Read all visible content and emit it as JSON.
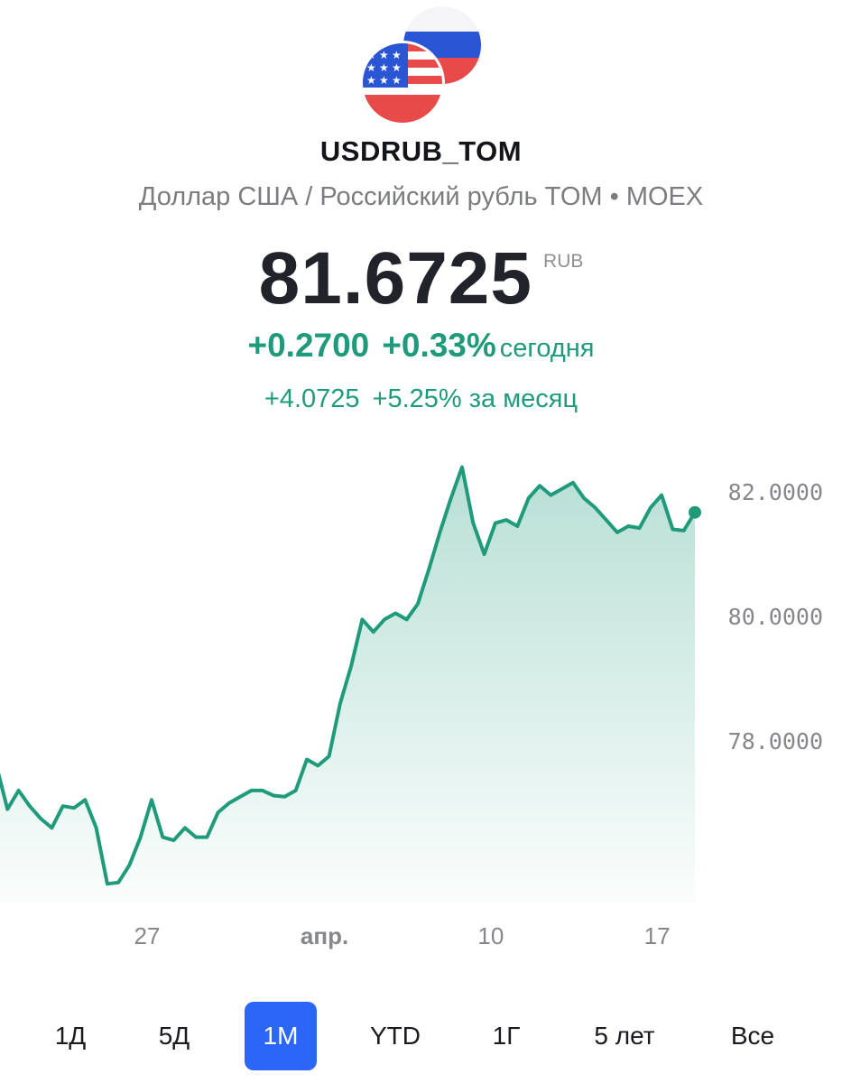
{
  "header": {
    "ticker": "USDRUB_TOM",
    "subtitle": "Доллар США / Российский рубль TOM • MOEX",
    "flags_icon": "usa-russia-flags-icon"
  },
  "quote": {
    "price": "81.6725",
    "currency": "RUB",
    "change_today_abs": "+0.2700",
    "change_today_pct": "+0.33%",
    "today_label": "сегодня",
    "change_month_abs": "+4.0725",
    "change_month_pct": "+5.25%",
    "month_label": "за месяц"
  },
  "colors": {
    "positive": "#1f9b7c",
    "accent": "#2b66f6",
    "text": "#22232a",
    "muted": "#7a7c80"
  },
  "chart_data": {
    "type": "area",
    "x": [
      0,
      1,
      2,
      3,
      4,
      5,
      6,
      7,
      8,
      9,
      10,
      11,
      12,
      13,
      14,
      15,
      16,
      17,
      18,
      19,
      20,
      21,
      22,
      23,
      24,
      25,
      26,
      27,
      28,
      29,
      30,
      31,
      32,
      33,
      34,
      35,
      36,
      37,
      38,
      39,
      40,
      41,
      42,
      43,
      44,
      45,
      46,
      47,
      48,
      49,
      50,
      51,
      52,
      53,
      54,
      55,
      56,
      57,
      58,
      59,
      60,
      61,
      62,
      63
    ],
    "values": [
      77.6,
      76.9,
      77.2,
      76.95,
      76.75,
      76.6,
      76.95,
      76.92,
      77.05,
      76.6,
      75.7,
      75.72,
      76.0,
      76.45,
      77.05,
      76.45,
      76.4,
      76.6,
      76.45,
      76.45,
      76.85,
      77.0,
      77.1,
      77.2,
      77.2,
      77.12,
      77.1,
      77.2,
      77.7,
      77.6,
      77.75,
      78.6,
      79.2,
      79.95,
      79.75,
      79.95,
      80.05,
      79.95,
      80.2,
      80.75,
      81.35,
      81.9,
      82.4,
      81.5,
      81.0,
      81.5,
      81.55,
      81.45,
      81.9,
      82.1,
      81.95,
      82.05,
      82.15,
      81.9,
      81.75,
      81.55,
      81.35,
      81.45,
      81.42,
      81.75,
      81.95,
      81.4,
      81.38,
      81.6725
    ],
    "y_ticks": [
      "82.0000",
      "80.0000",
      "78.0000"
    ],
    "y_tick_values": [
      82,
      80,
      78
    ],
    "x_tick_labels": [
      {
        "label": "27",
        "index": 14,
        "bold": false
      },
      {
        "label": "апр.",
        "index": 30,
        "bold": true
      },
      {
        "label": "10",
        "index": 45,
        "bold": false
      },
      {
        "label": "17",
        "index": 60,
        "bold": false
      }
    ],
    "ylim": [
      75.4,
      82.8
    ],
    "line_color": "#1f9b7c",
    "last_value_marker": true,
    "grid": false
  },
  "periods": {
    "items": [
      {
        "label": "1Д",
        "active": false
      },
      {
        "label": "5Д",
        "active": false
      },
      {
        "label": "1М",
        "active": true
      },
      {
        "label": "YTD",
        "active": false
      },
      {
        "label": "1Г",
        "active": false
      },
      {
        "label": "5 лет",
        "active": false
      },
      {
        "label": "Все",
        "active": false
      }
    ]
  }
}
